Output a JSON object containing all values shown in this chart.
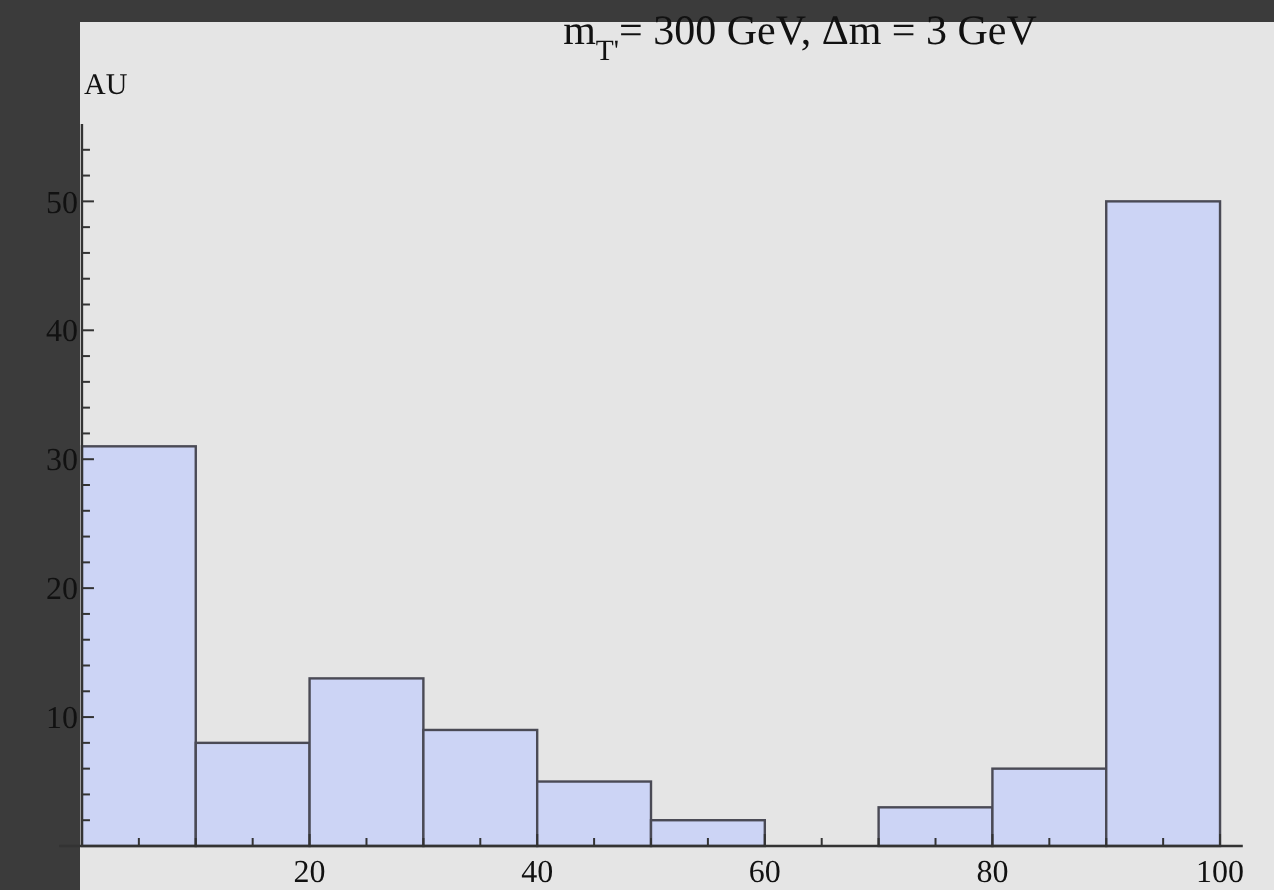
{
  "chart_data": {
    "type": "histogram",
    "title": "m$_{T'}$= 300 GeV, Δm = 3 GeV",
    "ylabel": "AU",
    "bins": [
      0,
      10,
      20,
      30,
      40,
      50,
      60,
      70,
      80,
      90,
      100
    ],
    "values": [
      31,
      8,
      13,
      9,
      5,
      2,
      0,
      3,
      6,
      50
    ],
    "color": "#ccd4f5",
    "xlim": [
      -2,
      102
    ],
    "xticks": [
      {
        "value": 5,
        "label": null
      },
      {
        "value": 10,
        "label": null
      },
      {
        "value": 15,
        "label": null
      },
      20,
      {
        "value": 25,
        "label": null
      },
      {
        "value": 30,
        "label": null
      },
      {
        "value": 35,
        "label": null
      },
      40,
      {
        "value": 45,
        "label": null
      },
      {
        "value": 50,
        "label": null
      },
      {
        "value": 55,
        "label": null
      },
      60,
      {
        "value": 65,
        "label": null
      },
      {
        "value": 70,
        "label": null
      },
      {
        "value": 75,
        "label": null
      },
      80,
      {
        "value": 85,
        "label": null
      },
      {
        "value": 90,
        "label": null
      },
      {
        "value": 95,
        "label": null
      },
      100
    ],
    "ylim": [
      0,
      56
    ],
    "yticks": [
      {
        "value": 2,
        "label": null
      },
      {
        "value": 4,
        "label": null
      },
      {
        "value": 6,
        "label": null
      },
      {
        "value": 8,
        "label": null
      },
      10,
      {
        "value": 12,
        "label": null
      },
      {
        "value": 14,
        "label": null
      },
      {
        "value": 16,
        "label": null
      },
      {
        "value": 18,
        "label": null
      },
      20,
      {
        "value": 22,
        "label": null
      },
      {
        "value": 24,
        "label": null
      },
      {
        "value": 26,
        "label": null
      },
      {
        "value": 28,
        "label": null
      },
      30,
      {
        "value": 32,
        "label": null
      },
      {
        "value": 34,
        "label": null
      },
      {
        "value": 36,
        "label": null
      },
      {
        "value": 38,
        "label": null
      },
      40,
      {
        "value": 42,
        "label": null
      },
      {
        "value": 44,
        "label": null
      },
      {
        "value": 46,
        "label": null
      },
      {
        "value": 48,
        "label": null
      },
      50,
      {
        "value": 52,
        "label": null
      },
      {
        "value": 54,
        "label": null
      }
    ],
    "grid": false
  }
}
